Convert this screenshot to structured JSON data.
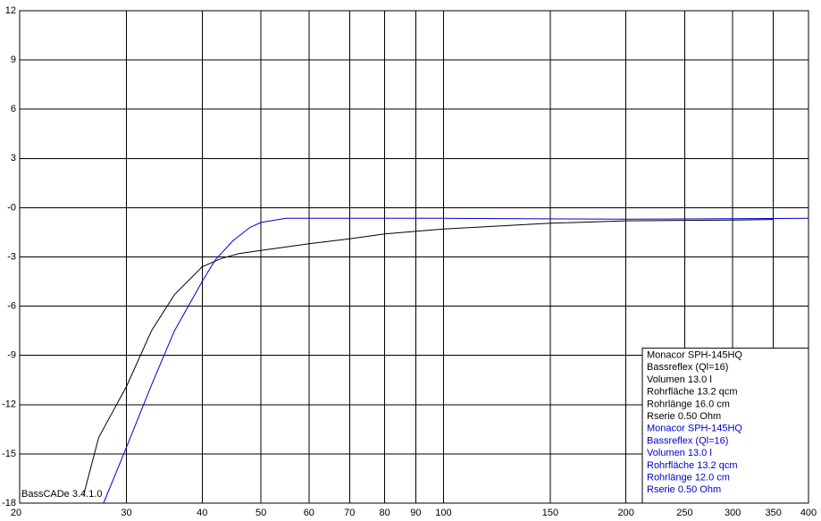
{
  "chart_data": {
    "type": "line",
    "x_scale": "log",
    "grid": true,
    "xlim": [
      20,
      400
    ],
    "xticks": [
      20,
      30,
      40,
      50,
      60,
      70,
      80,
      90,
      100,
      150,
      200,
      250,
      300,
      350,
      400
    ],
    "ylim": [
      -18,
      12
    ],
    "yticks": [
      -18,
      -15,
      -12,
      -9,
      -6,
      -3,
      {
        "value": 0,
        "label": "-0"
      },
      3,
      6,
      9,
      12
    ],
    "watermark": "BassCADe 3.4.1.0",
    "legend_position": "lower right",
    "series": [
      {
        "name": "Monacor SPH-145HQ",
        "color": "#000000",
        "details": [
          "Bassreflex (Ql=16)",
          "Volumen 13.0 l",
          "Rohrfläche 13.2 qcm",
          "Rohrlänge 16.0 cm",
          "Rserie 0.50 Ohm"
        ],
        "x": [
          25.5,
          27,
          30,
          33,
          36,
          40,
          43,
          46,
          50,
          60,
          70,
          80,
          100,
          150,
          200,
          300,
          350
        ],
        "values": [
          -17.5,
          -14,
          -10.9,
          -7.5,
          -5.3,
          -3.6,
          -3.1,
          -2.8,
          -2.6,
          -2.2,
          -1.9,
          -1.6,
          -1.3,
          -0.95,
          -0.8,
          -0.75,
          -0.72
        ]
      },
      {
        "name": "Monacor SPH-145HQ",
        "color": "#0000cc",
        "details": [
          "Bassreflex (Ql=16)",
          "Volumen 13.0 l",
          "Rohrfläche 13.2 qcm",
          "Rohrlänge 12.0 cm",
          "Rserie 0.50 Ohm"
        ],
        "x": [
          27.5,
          30,
          33,
          36,
          40,
          42,
          45,
          48,
          50,
          55,
          60,
          100,
          200,
          400
        ],
        "values": [
          -18,
          -14.6,
          -10.8,
          -7.5,
          -4.5,
          -3.2,
          -2,
          -1.2,
          -0.9,
          -0.65,
          -0.65,
          -0.65,
          -0.7,
          -0.65
        ]
      }
    ]
  }
}
